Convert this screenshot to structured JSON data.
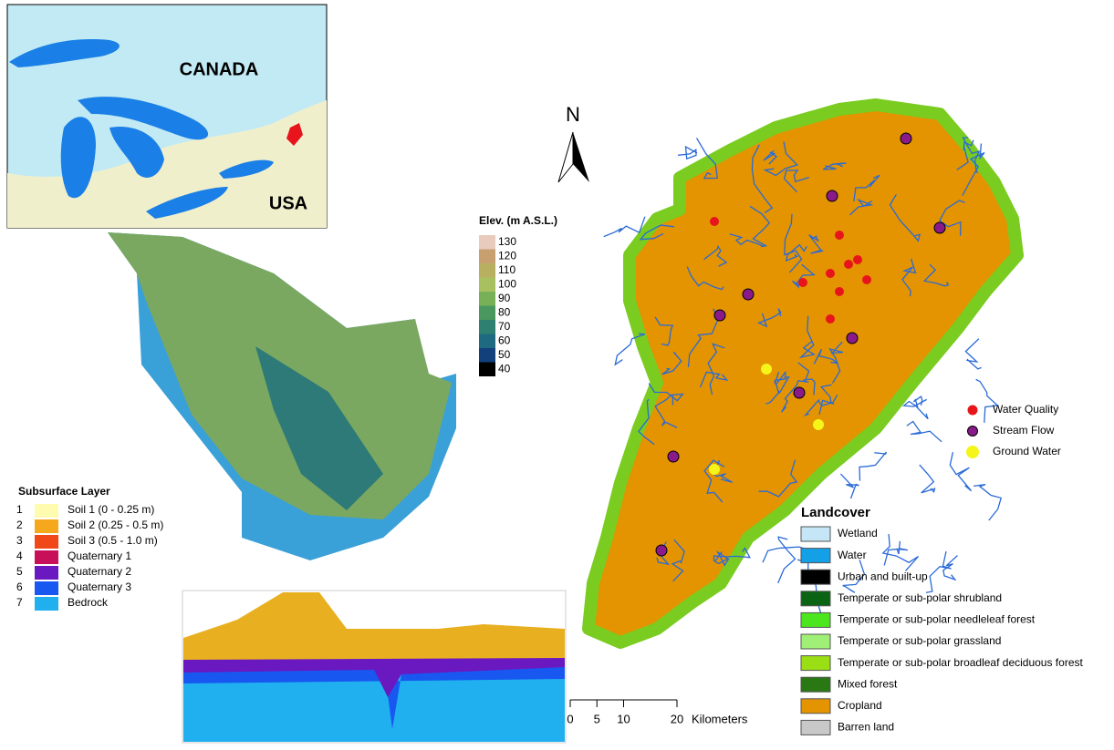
{
  "inset": {
    "country_labels": [
      "CANADA",
      "USA"
    ]
  },
  "north_arrow": "N",
  "elevation_legend": {
    "title": "Elev. (m A.S.L.)",
    "items": [
      {
        "value": 130,
        "color": "#e9cbbd"
      },
      {
        "value": 120,
        "color": "#c8a070"
      },
      {
        "value": 110,
        "color": "#b8b060"
      },
      {
        "value": 100,
        "color": "#a8c060"
      },
      {
        "value": 90,
        "color": "#78b058"
      },
      {
        "value": 80,
        "color": "#4a9860"
      },
      {
        "value": 70,
        "color": "#2e8070"
      },
      {
        "value": 60,
        "color": "#1e6a80"
      },
      {
        "value": 50,
        "color": "#12407a"
      },
      {
        "value": 40,
        "color": "#000000"
      }
    ]
  },
  "subsurface_legend": {
    "title": "Subsurface Layer",
    "items": [
      {
        "index": 1,
        "label": "Soil 1 (0 - 0.25 m)",
        "color": "#fffcb0"
      },
      {
        "index": 2,
        "label": "Soil 2 (0.25  - 0.5 m)",
        "color": "#f5a81c"
      },
      {
        "index": 3,
        "label": "Soil 3 (0.5 - 1.0 m)",
        "color": "#f04818"
      },
      {
        "index": 4,
        "label": "Quaternary 1",
        "color": "#c8105a"
      },
      {
        "index": 5,
        "label": "Quaternary 2",
        "color": "#6a18c0"
      },
      {
        "index": 6,
        "label": "Quaternary 3",
        "color": "#1858f0"
      },
      {
        "index": 7,
        "label": "Bedrock",
        "color": "#20b0f0"
      }
    ]
  },
  "points_legend": [
    {
      "label": "Water Quality",
      "color": "#e8141c"
    },
    {
      "label": "Stream Flow",
      "color": "#8a1a8a"
    },
    {
      "label": "Ground Water",
      "color": "#f5f51a"
    }
  ],
  "landcover_legend": {
    "title": "Landcover",
    "items": [
      {
        "label": "Wetland",
        "color": "#c4e6f6"
      },
      {
        "label": "Water",
        "color": "#14a0e6"
      },
      {
        "label": "Urban and built-up",
        "color": "#000000"
      },
      {
        "label": "Temperate or sub-polar shrubland",
        "color": "#0a6414"
      },
      {
        "label": "Temperate or sub-polar needleleaf forest",
        "color": "#4ce61e"
      },
      {
        "label": "Temperate or sub-polar grassland",
        "color": "#a0f078"
      },
      {
        "label": "Temperate or sub-polar broadleaf deciduous forest",
        "color": "#9ade14"
      },
      {
        "label": "Mixed forest",
        "color": "#2a7814"
      },
      {
        "label": "Cropland",
        "color": "#e39400"
      },
      {
        "label": "Barren land",
        "color": "#c8c8c8"
      }
    ]
  },
  "scale_bar": {
    "ticks": [
      0,
      5,
      10,
      20
    ],
    "unit": "Kilometers"
  }
}
